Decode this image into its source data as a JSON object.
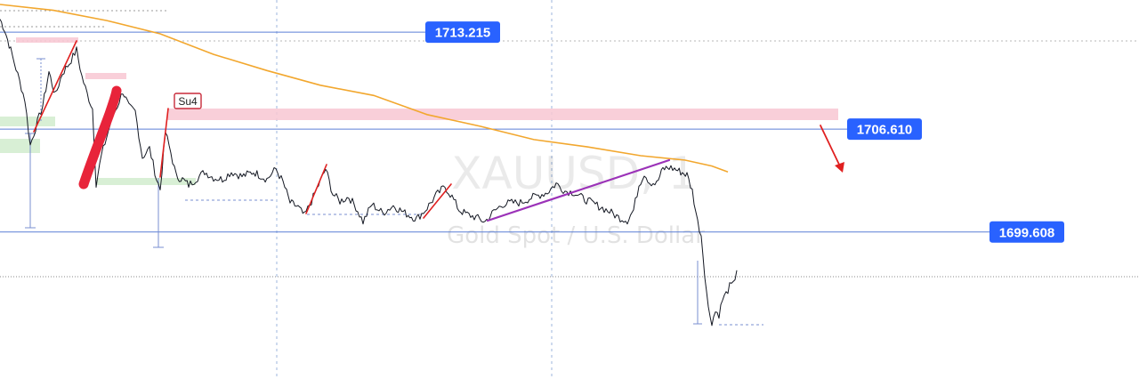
{
  "chart_data": {
    "type": "line",
    "symbol": "XAUUSD, 1",
    "description": "Gold Spot / U.S. Dollar",
    "ylim": [
      1689.6,
      1715.4
    ],
    "x_range": [
      0,
      830
    ],
    "grid": false,
    "colors": {
      "price": "#131722",
      "ma": "#f2a72e",
      "level": "#5b7fd6",
      "label_bg": "#2962ff",
      "zone_red": "#f8c7d2",
      "zone_green": "#d4edd0",
      "impulse": "#e02020",
      "trendline": "#9b32b8",
      "brush": "#e8243a"
    },
    "series": [
      {
        "values": [
          [
            0,
            1714.1
          ],
          [
            5,
            1713.4
          ],
          [
            12,
            1712.0
          ],
          [
            20,
            1710.3
          ],
          [
            28,
            1708.6
          ],
          [
            34,
            1705.5
          ],
          [
            40,
            1706.7
          ],
          [
            48,
            1708.2
          ],
          [
            55,
            1710.5
          ],
          [
            62,
            1708.9
          ],
          [
            70,
            1710.4
          ],
          [
            78,
            1711.1
          ],
          [
            86,
            1712.0
          ],
          [
            92,
            1710.2
          ],
          [
            98,
            1709.0
          ],
          [
            104,
            1708.0
          ],
          [
            108,
            1702.9
          ],
          [
            114,
            1704.8
          ],
          [
            120,
            1706.1
          ],
          [
            126,
            1707.4
          ],
          [
            132,
            1708.2
          ],
          [
            138,
            1709.2
          ],
          [
            145,
            1708.1
          ],
          [
            152,
            1707.8
          ],
          [
            160,
            1704.7
          ],
          [
            168,
            1705.3
          ],
          [
            176,
            1703.2
          ],
          [
            180,
            1702.5
          ],
          [
            186,
            1706.4
          ],
          [
            192,
            1705.0
          ],
          [
            198,
            1703.4
          ],
          [
            205,
            1703.2
          ],
          [
            212,
            1702.8
          ],
          [
            220,
            1703.2
          ],
          [
            230,
            1703.7
          ],
          [
            240,
            1703.3
          ],
          [
            250,
            1703.2
          ],
          [
            260,
            1703.7
          ],
          [
            272,
            1703.4
          ],
          [
            285,
            1703.7
          ],
          [
            300,
            1703.2
          ],
          [
            310,
            1703.9
          ],
          [
            318,
            1703.0
          ],
          [
            326,
            1701.6
          ],
          [
            335,
            1701.3
          ],
          [
            342,
            1700.7
          ],
          [
            350,
            1701.7
          ],
          [
            358,
            1702.8
          ],
          [
            366,
            1703.9
          ],
          [
            374,
            1702.2
          ],
          [
            382,
            1701.7
          ],
          [
            392,
            1702.0
          ],
          [
            400,
            1701.3
          ],
          [
            408,
            1700.3
          ],
          [
            418,
            1701.5
          ],
          [
            430,
            1700.9
          ],
          [
            442,
            1701.4
          ],
          [
            455,
            1700.9
          ],
          [
            468,
            1700.5
          ],
          [
            478,
            1701.1
          ],
          [
            490,
            1702.1
          ],
          [
            500,
            1702.7
          ],
          [
            508,
            1702.0
          ],
          [
            516,
            1701.1
          ],
          [
            525,
            1700.8
          ],
          [
            535,
            1700.6
          ],
          [
            545,
            1700.3
          ],
          [
            555,
            1701.0
          ],
          [
            565,
            1701.5
          ],
          [
            575,
            1701.6
          ],
          [
            585,
            1701.6
          ],
          [
            595,
            1701.9
          ],
          [
            605,
            1702.1
          ],
          [
            615,
            1702.3
          ],
          [
            625,
            1702.9
          ],
          [
            635,
            1702.4
          ],
          [
            645,
            1702.3
          ],
          [
            655,
            1701.9
          ],
          [
            665,
            1701.6
          ],
          [
            675,
            1701.3
          ],
          [
            685,
            1701.0
          ],
          [
            695,
            1700.6
          ],
          [
            705,
            1700.4
          ],
          [
            712,
            1701.1
          ],
          [
            718,
            1702.8
          ],
          [
            724,
            1703.6
          ],
          [
            730,
            1703.0
          ],
          [
            738,
            1702.9
          ],
          [
            745,
            1703.9
          ],
          [
            752,
            1704.0
          ],
          [
            758,
            1703.9
          ],
          [
            765,
            1703.7
          ],
          [
            772,
            1703.5
          ],
          [
            778,
            1702.4
          ],
          [
            784,
            1700.3
          ],
          [
            788,
            1699.4
          ],
          [
            792,
            1696.8
          ],
          [
            796,
            1694.4
          ],
          [
            800,
            1693.5
          ],
          [
            804,
            1694.2
          ],
          [
            808,
            1694.0
          ],
          [
            812,
            1695.0
          ],
          [
            816,
            1695.4
          ],
          [
            820,
            1695.9
          ],
          [
            824,
            1696.0
          ],
          [
            828,
            1697.0
          ]
        ]
      },
      {
        "values": [
          [
            0,
            1715.1
          ],
          [
            60,
            1714.7
          ],
          [
            120,
            1714.0
          ],
          [
            180,
            1713.1
          ],
          [
            240,
            1711.7
          ],
          [
            300,
            1710.6
          ],
          [
            360,
            1709.6
          ],
          [
            420,
            1708.9
          ],
          [
            480,
            1707.6
          ],
          [
            540,
            1706.8
          ],
          [
            600,
            1705.9
          ],
          [
            660,
            1705.4
          ],
          [
            720,
            1704.8
          ],
          [
            770,
            1704.5
          ],
          [
            800,
            1704.1
          ],
          [
            818,
            1703.7
          ]
        ]
      }
    ],
    "price_labels": [
      {
        "value": "1713.215",
        "level": 1713.215,
        "x_end": 478
      },
      {
        "value": "1706.610",
        "level": 1706.61,
        "x_end": 952
      },
      {
        "value": "1699.608",
        "level": 1699.608,
        "x_end": 1112
      }
    ],
    "annotations": {
      "su4_label": "Su4"
    }
  }
}
